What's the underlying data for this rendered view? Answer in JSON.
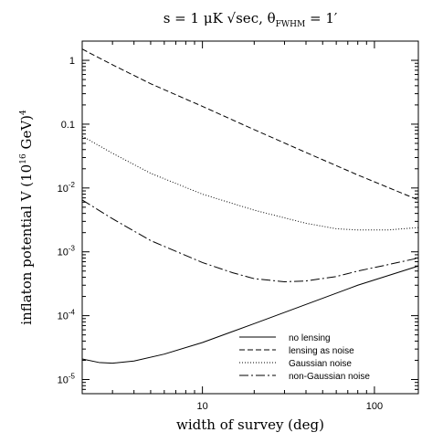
{
  "chart_data": {
    "type": "line",
    "title": "s = 1 μK √sec, θ",
    "title_subscript": "FWHM",
    "title_suffix": " = 1′",
    "xlabel": "width of survey (deg)",
    "ylabel": "inflaton potential V (10",
    "ylabel_superscript": "16",
    "ylabel_suffix": " GeV)",
    "ylabel_power": "4",
    "x_scale": "log",
    "y_scale": "log",
    "xlim": [
      2,
      180
    ],
    "ylim": [
      6e-06,
      2.0
    ],
    "x_ticks": [
      {
        "value": 10,
        "label": "10"
      },
      {
        "value": 100,
        "label": "100"
      }
    ],
    "y_ticks": [
      {
        "value": 1e-05,
        "mantissa": "10",
        "exponent": "-5"
      },
      {
        "value": 0.0001,
        "mantissa": "10",
        "exponent": "-4"
      },
      {
        "value": 0.001,
        "mantissa": "10",
        "exponent": "-3"
      },
      {
        "value": 0.01,
        "mantissa": "10",
        "exponent": "-2"
      },
      {
        "value": 0.1,
        "mantissa": "0.1",
        "exponent": ""
      },
      {
        "value": 1,
        "mantissa": "1",
        "exponent": ""
      }
    ],
    "legend_position": "bottom-right",
    "series": [
      {
        "name": "no lensing",
        "dash": "solid",
        "points": [
          [
            2,
            2.1e-05
          ],
          [
            2.5,
            1.85e-05
          ],
          [
            3,
            1.8e-05
          ],
          [
            4,
            1.95e-05
          ],
          [
            6,
            2.5e-05
          ],
          [
            10,
            3.8e-05
          ],
          [
            20,
            7.5e-05
          ],
          [
            40,
            0.00015
          ],
          [
            80,
            0.0003
          ],
          [
            180,
            0.0006
          ]
        ]
      },
      {
        "name": "lensing as noise",
        "dash": "dashed",
        "points": [
          [
            2,
            1.5
          ],
          [
            3,
            0.85
          ],
          [
            5,
            0.43
          ],
          [
            10,
            0.19
          ],
          [
            20,
            0.082
          ],
          [
            40,
            0.036
          ],
          [
            80,
            0.016
          ],
          [
            180,
            0.0065
          ]
        ]
      },
      {
        "name": "Gaussian noise",
        "dash": "dotted",
        "points": [
          [
            2,
            0.065
          ],
          [
            3,
            0.035
          ],
          [
            5,
            0.017
          ],
          [
            10,
            0.008
          ],
          [
            20,
            0.0045
          ],
          [
            40,
            0.0028
          ],
          [
            60,
            0.0023
          ],
          [
            80,
            0.0022
          ],
          [
            120,
            0.0022
          ],
          [
            180,
            0.0024
          ]
        ]
      },
      {
        "name": "non-Gaussian noise",
        "dash": "dash-dot",
        "points": [
          [
            2,
            0.0065
          ],
          [
            3,
            0.0033
          ],
          [
            5,
            0.0015
          ],
          [
            10,
            0.00068
          ],
          [
            15,
            0.00047
          ],
          [
            20,
            0.00038
          ],
          [
            30,
            0.00034
          ],
          [
            40,
            0.00035
          ],
          [
            60,
            0.00041
          ],
          [
            80,
            0.0005
          ],
          [
            120,
            0.00063
          ],
          [
            180,
            0.0008
          ]
        ]
      }
    ]
  },
  "colors": {
    "line": "#000000",
    "background": "#ffffff"
  }
}
